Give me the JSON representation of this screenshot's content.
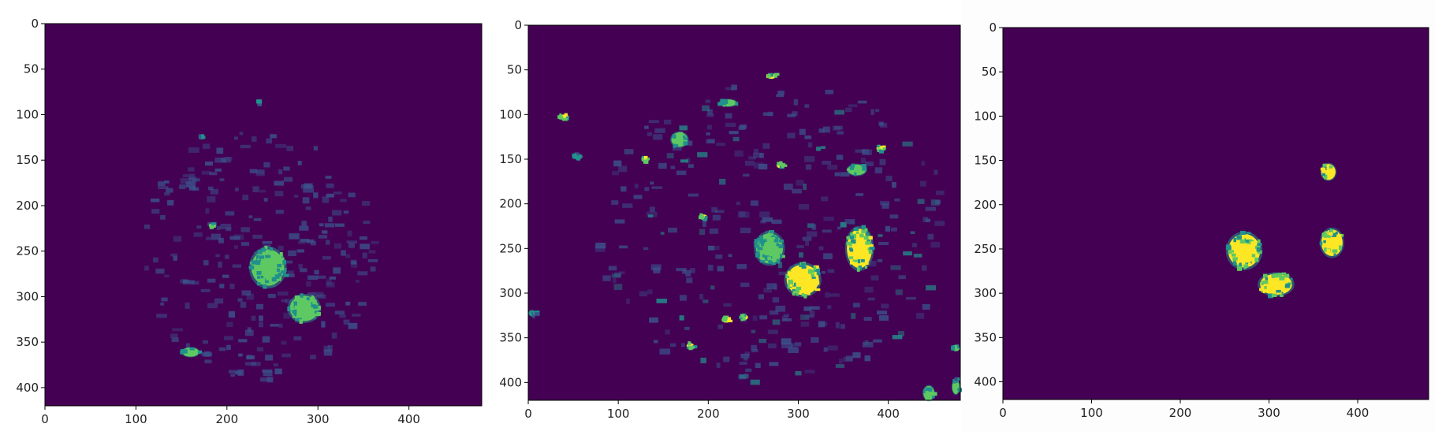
{
  "colors": {
    "background": "#440154",
    "low": "#3b528b",
    "mid": "#21918c",
    "high_mid": "#5ec962",
    "high": "#fde725"
  },
  "chart_data": [
    {
      "type": "heatmap",
      "title": "",
      "xlabel": "",
      "ylabel": "",
      "colormap": "viridis",
      "xlim": [
        0,
        480
      ],
      "ylim": [
        420,
        0
      ],
      "x_ticks": [
        0,
        100,
        200,
        300,
        400
      ],
      "y_ticks": [
        0,
        50,
        100,
        150,
        200,
        250,
        300,
        350,
        400
      ],
      "grid": false,
      "blobs": [
        {
          "x": 245,
          "y": 268,
          "rx": 18,
          "ry": 20,
          "intensity": 0.8
        },
        {
          "x": 285,
          "y": 313,
          "rx": 16,
          "ry": 14,
          "intensity": 0.85
        },
        {
          "x": 160,
          "y": 361,
          "rx": 9,
          "ry": 5,
          "intensity": 0.7
        },
        {
          "x": 185,
          "y": 222,
          "rx": 3,
          "ry": 2,
          "intensity": 0.9
        },
        {
          "x": 236,
          "y": 86,
          "rx": 2,
          "ry": 2,
          "intensity": 0.6
        },
        {
          "x": 172,
          "y": 124,
          "rx": 2,
          "ry": 2,
          "intensity": 0.6
        }
      ],
      "noise": {
        "cx": 230,
        "cy": 250,
        "rx": 130,
        "ry": 140,
        "count": 260,
        "max_intensity": 0.45
      }
    },
    {
      "type": "heatmap",
      "title": "",
      "xlabel": "",
      "ylabel": "",
      "colormap": "viridis",
      "xlim": [
        0,
        480
      ],
      "ylim": [
        420,
        0
      ],
      "x_ticks": [
        0,
        100,
        200,
        300,
        400
      ],
      "y_ticks": [
        0,
        50,
        100,
        150,
        200,
        250,
        300,
        350,
        400
      ],
      "grid": false,
      "blobs": [
        {
          "x": 305,
          "y": 285,
          "rx": 18,
          "ry": 17,
          "intensity": 1.0
        },
        {
          "x": 368,
          "y": 250,
          "rx": 14,
          "ry": 22,
          "intensity": 1.0
        },
        {
          "x": 268,
          "y": 250,
          "rx": 15,
          "ry": 17,
          "intensity": 0.75
        },
        {
          "x": 365,
          "y": 162,
          "rx": 10,
          "ry": 6,
          "intensity": 0.85
        },
        {
          "x": 222,
          "y": 87,
          "rx": 9,
          "ry": 4,
          "intensity": 0.85
        },
        {
          "x": 168,
          "y": 128,
          "rx": 9,
          "ry": 8,
          "intensity": 0.8
        },
        {
          "x": 40,
          "y": 103,
          "rx": 5,
          "ry": 3,
          "intensity": 1.0
        },
        {
          "x": 130,
          "y": 150,
          "rx": 4,
          "ry": 3,
          "intensity": 1.0
        },
        {
          "x": 195,
          "y": 215,
          "rx": 4,
          "ry": 3,
          "intensity": 1.0
        },
        {
          "x": 280,
          "y": 157,
          "rx": 4,
          "ry": 3,
          "intensity": 1.0
        },
        {
          "x": 270,
          "y": 57,
          "rx": 5,
          "ry": 3,
          "intensity": 0.95
        },
        {
          "x": 392,
          "y": 138,
          "rx": 5,
          "ry": 3,
          "intensity": 0.95
        },
        {
          "x": 445,
          "y": 412,
          "rx": 6,
          "ry": 8,
          "intensity": 0.8
        },
        {
          "x": 475,
          "y": 405,
          "rx": 4,
          "ry": 8,
          "intensity": 0.7
        },
        {
          "x": 475,
          "y": 362,
          "rx": 4,
          "ry": 3,
          "intensity": 0.8
        },
        {
          "x": 55,
          "y": 147,
          "rx": 5,
          "ry": 3,
          "intensity": 0.6
        },
        {
          "x": 5,
          "y": 323,
          "rx": 4,
          "ry": 3,
          "intensity": 0.6
        },
        {
          "x": 220,
          "y": 330,
          "rx": 5,
          "ry": 3,
          "intensity": 1.0
        },
        {
          "x": 240,
          "y": 327,
          "rx": 4,
          "ry": 3,
          "intensity": 0.9
        },
        {
          "x": 180,
          "y": 359,
          "rx": 4,
          "ry": 3,
          "intensity": 0.9
        }
      ],
      "noise": {
        "cx": 270,
        "cy": 230,
        "rx": 200,
        "ry": 170,
        "count": 320,
        "max_intensity": 0.55
      }
    },
    {
      "type": "heatmap",
      "title": "",
      "xlabel": "",
      "ylabel": "",
      "colormap": "viridis",
      "xlim": [
        0,
        480
      ],
      "ylim": [
        420,
        0
      ],
      "x_ticks": [
        0,
        100,
        200,
        300,
        400
      ],
      "y_ticks": [
        0,
        50,
        100,
        150,
        200,
        250,
        300,
        350,
        400
      ],
      "grid": false,
      "blobs": [
        {
          "x": 272,
          "y": 252,
          "rx": 18,
          "ry": 19,
          "intensity": 1.0
        },
        {
          "x": 308,
          "y": 290,
          "rx": 18,
          "ry": 12,
          "intensity": 1.0
        },
        {
          "x": 371,
          "y": 243,
          "rx": 12,
          "ry": 15,
          "intensity": 1.0
        },
        {
          "x": 367,
          "y": 163,
          "rx": 8,
          "ry": 9,
          "intensity": 1.0
        }
      ],
      "noise": {
        "cx": 0,
        "cy": 0,
        "rx": 0,
        "ry": 0,
        "count": 0,
        "max_intensity": 0
      }
    }
  ]
}
